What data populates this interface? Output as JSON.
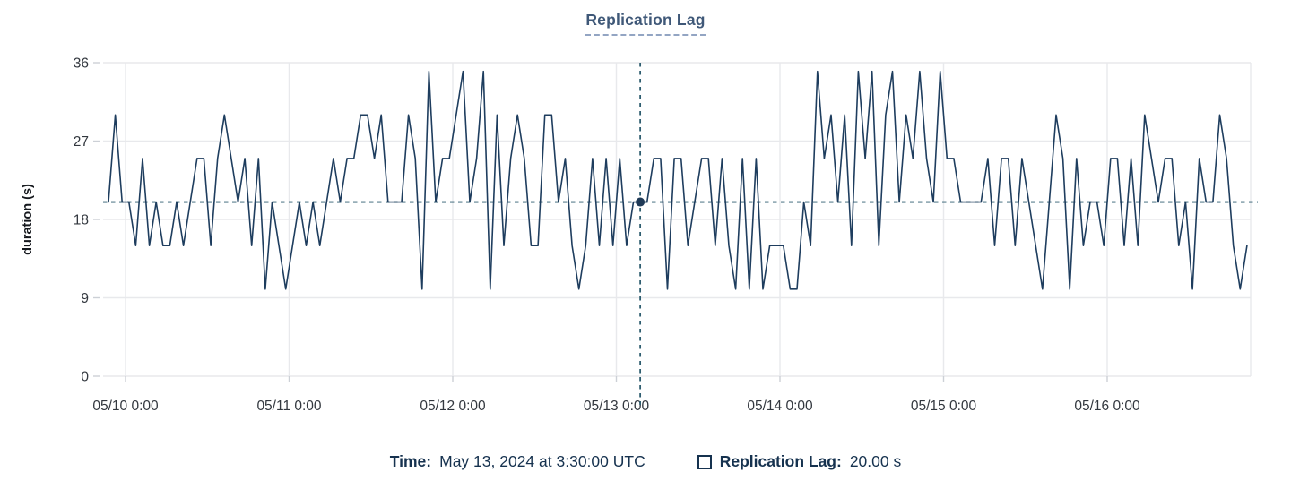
{
  "header": {
    "title": "Replication Lag"
  },
  "chart_data": {
    "type": "line",
    "title": "Replication Lag",
    "ylabel": "duration (s)",
    "xlabel": "",
    "ylim": [
      0,
      36
    ],
    "y_ticks": [
      0,
      9,
      18,
      27,
      36
    ],
    "x_ticks": [
      {
        "label": "05/10 0:00",
        "hour_offset": 2.5
      },
      {
        "label": "05/11 0:00",
        "hour_offset": 26.5
      },
      {
        "label": "05/12 0:00",
        "hour_offset": 50.5
      },
      {
        "label": "05/13 0:00",
        "hour_offset": 74.5
      },
      {
        "label": "05/14 0:00",
        "hour_offset": 98.5
      },
      {
        "label": "05/15 0:00",
        "hour_offset": 122.5
      },
      {
        "label": "05/16 0:00",
        "hour_offset": 146.5
      }
    ],
    "x_start": "2024-05-09 21:30 UTC",
    "x_step_hours": 1,
    "grid": true,
    "legend_position": "bottom",
    "series": [
      {
        "name": "Replication Lag",
        "values": [
          20,
          30,
          20,
          20,
          15,
          25,
          15,
          20,
          15,
          15,
          20,
          15,
          20,
          25,
          25,
          15,
          25,
          30,
          25,
          20,
          25,
          15,
          25,
          10,
          20,
          15,
          10,
          15,
          20,
          15,
          20,
          15,
          20,
          25,
          20,
          25,
          25,
          30,
          30,
          25,
          30,
          20,
          20,
          20,
          30,
          25,
          10,
          35,
          20,
          25,
          25,
          30,
          35,
          20,
          25,
          35,
          10,
          30,
          15,
          25,
          30,
          25,
          15,
          15,
          30,
          30,
          20,
          25,
          15,
          10,
          15,
          25,
          15,
          25,
          15,
          25,
          15,
          20,
          20,
          20,
          25,
          25,
          10,
          25,
          25,
          15,
          20,
          25,
          25,
          15,
          25,
          15,
          10,
          25,
          10,
          25,
          10,
          15,
          15,
          15,
          10,
          10,
          20,
          15,
          35,
          25,
          30,
          20,
          30,
          15,
          35,
          25,
          35,
          15,
          30,
          35,
          20,
          30,
          25,
          35,
          25,
          20,
          35,
          25,
          25,
          20,
          20,
          20,
          20,
          25,
          15,
          25,
          25,
          15,
          25,
          20,
          15,
          10,
          20,
          30,
          25,
          10,
          25,
          15,
          20,
          20,
          15,
          25,
          25,
          15,
          25,
          15,
          30,
          25,
          20,
          25,
          25,
          15,
          20,
          10,
          25,
          20,
          20,
          30,
          25,
          15,
          10,
          15
        ]
      }
    ],
    "crosshair": {
      "index": 78,
      "time": "May 13, 2024 at 3:30:00 UTC",
      "value": 20,
      "value_label": "20.00 s"
    }
  },
  "footer": {
    "time_label": "Time:",
    "time_value": "May 13, 2024 at 3:30:00 UTC",
    "series_label": "Replication Lag:",
    "series_value": "20.00 s"
  },
  "colors": {
    "line": "#1e3d5e",
    "crosshair": "#2f5e70",
    "dot": "#1f3a57",
    "grid": "#e8e9ec",
    "tick": "#ccd0d6",
    "axis_text": "#33383f",
    "title": "#3f5878",
    "title_underline": "#93a5c3",
    "footer_text": "#16324f"
  }
}
